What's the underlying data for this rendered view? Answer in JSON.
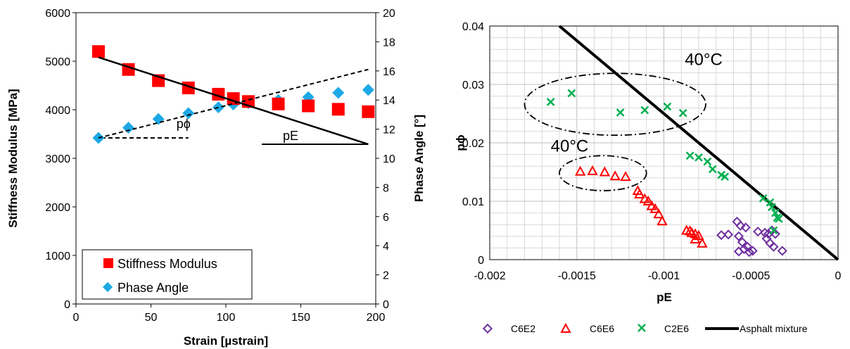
{
  "chart_data": [
    {
      "type": "scatter",
      "xlabel": "Strain [µstrain]",
      "ylabel": "Stiffness Modulus [MPa]",
      "y2label": "Phase Angle [°]",
      "xlim": [
        0,
        200
      ],
      "ylim": [
        0,
        6000
      ],
      "y2lim": [
        0,
        20
      ],
      "x_ticks": [
        "0",
        "50",
        "100",
        "150",
        "200"
      ],
      "y_ticks": [
        "0",
        "1000",
        "2000",
        "3000",
        "4000",
        "5000",
        "6000"
      ],
      "y2_ticks": [
        "0",
        "2",
        "4",
        "6",
        "8",
        "10",
        "12",
        "14",
        "16",
        "18",
        "20"
      ],
      "grid": false,
      "legend": "bottom-left",
      "series": [
        {
          "name": "Stiffness Modulus",
          "axis": "left",
          "marker": "square",
          "color": "#ff0000",
          "x": [
            15,
            35,
            55,
            75,
            95,
            105,
            115,
            135,
            155,
            175,
            195
          ],
          "y": [
            5200,
            4830,
            4600,
            4450,
            4320,
            4230,
            4170,
            4120,
            4080,
            4010,
            3960
          ]
        },
        {
          "name": "Phase Angle",
          "axis": "right",
          "marker": "diamond",
          "color": "#1ca9e6",
          "x": [
            15,
            35,
            55,
            75,
            95,
            105,
            115,
            135,
            155,
            175,
            195
          ],
          "y": [
            11.4,
            12.1,
            12.7,
            13.1,
            13.5,
            13.7,
            13.8,
            14.0,
            14.2,
            14.5,
            14.7
          ]
        }
      ],
      "trend_lines": [
        {
          "axis": "left",
          "x": [
            15,
            195
          ],
          "y": [
            5080,
            3290
          ],
          "style": "solid"
        },
        {
          "axis": "right",
          "x": [
            15,
            195
          ],
          "y": [
            11.4,
            16.1
          ],
          "style": "dashed"
        }
      ],
      "annotations": [
        {
          "text": "pϕ",
          "x": 67,
          "y": 3620
        },
        {
          "text": "pE",
          "x": 138,
          "y": 3380
        }
      ]
    },
    {
      "type": "scatter",
      "xlabel": "pE",
      "ylabel": "pϕ",
      "xlim": [
        -0.002,
        0
      ],
      "ylim": [
        0,
        0.04
      ],
      "x_ticks": [
        "-0.002",
        "-0.0015",
        "-0.001",
        "-0.0005",
        "0"
      ],
      "y_ticks": [
        "0",
        "0.01",
        "0.02",
        "0.03",
        "0.04"
      ],
      "grid": true,
      "legend": "bottom",
      "series": [
        {
          "name": "C6E2",
          "marker": "diamond-open",
          "color": "#7030a0",
          "x": [
            -0.00058,
            -0.00056,
            -0.00053,
            -0.00057,
            -0.00055,
            -0.00052,
            -0.00054,
            -0.00057,
            -0.00051,
            -0.00049,
            -0.00046,
            -0.00042,
            -0.0004,
            -0.00038,
            -0.00041,
            -0.00039,
            -0.00037,
            -0.00036,
            -0.00032,
            -0.00067,
            -0.00063
          ],
          "y": [
            0.0065,
            0.0058,
            0.0055,
            0.004,
            0.003,
            0.0022,
            0.0018,
            0.0014,
            0.0013,
            0.0015,
            0.0048,
            0.0046,
            0.0044,
            0.005,
            0.0036,
            0.0028,
            0.0022,
            0.0044,
            0.0015,
            0.0042,
            0.0043
          ]
        },
        {
          "name": "C6E6",
          "marker": "triangle-open",
          "color": "#ff0000",
          "x": [
            -0.00148,
            -0.00141,
            -0.00134,
            -0.00128,
            -0.00122,
            -0.00115,
            -0.00114,
            -0.00111,
            -0.00109,
            -0.00107,
            -0.00105,
            -0.00103,
            -0.00101,
            -0.00087,
            -0.00085,
            -0.00084,
            -0.00082,
            -0.0008,
            -0.00082,
            -0.00078
          ],
          "y": [
            0.0151,
            0.0152,
            0.015,
            0.0143,
            0.0142,
            0.0118,
            0.0112,
            0.0104,
            0.01,
            0.0092,
            0.0087,
            0.0078,
            0.0066,
            0.005,
            0.0049,
            0.0046,
            0.0035,
            0.0041,
            0.0044,
            0.0028
          ]
        },
        {
          "name": "C2E6",
          "marker": "x",
          "color": "#00b050",
          "x": [
            -0.00165,
            -0.00153,
            -0.00125,
            -0.00111,
            -0.00098,
            -0.00089,
            -0.00085,
            -0.0008,
            -0.00075,
            -0.00072,
            -0.00067,
            -0.00065,
            -0.00043,
            -0.00039,
            -0.00038,
            -0.00036,
            -0.00035,
            -0.00034,
            -0.00037
          ],
          "y": [
            0.027,
            0.0285,
            0.0252,
            0.0256,
            0.0262,
            0.0251,
            0.0178,
            0.0175,
            0.0168,
            0.0155,
            0.0145,
            0.0142,
            0.0105,
            0.0098,
            0.009,
            0.008,
            0.0072,
            0.007,
            0.005
          ]
        },
        {
          "name": "Asphalt mixture",
          "marker": "line",
          "color": "#000000",
          "x": [
            -0.0016,
            0
          ],
          "y": [
            0.04,
            0
          ]
        }
      ],
      "annotations": [
        {
          "text": "40°C",
          "x": -0.00088,
          "y": 0.0333
        },
        {
          "text": "40°C",
          "x": -0.00165,
          "y": 0.0185
        }
      ],
      "ellipses": [
        {
          "cx": -0.00128,
          "cy": 0.0266,
          "rx": 0.00052,
          "ry": 0.0053
        },
        {
          "cx": -0.00135,
          "cy": 0.0148,
          "rx": 0.00025,
          "ry": 0.003
        }
      ]
    }
  ]
}
